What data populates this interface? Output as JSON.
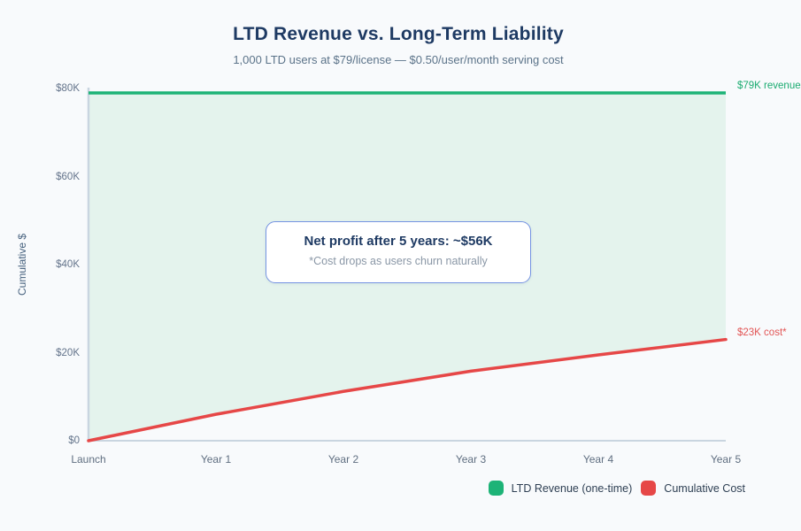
{
  "header": {
    "title": "LTD Revenue vs. Long-Term Liability",
    "subtitle": "1,000 LTD users at $79/license — $0.50/user/month serving cost"
  },
  "chart_data": {
    "type": "area",
    "categories": [
      "Launch",
      "Year 1",
      "Year 2",
      "Year 3",
      "Year 4",
      "Year 5"
    ],
    "series": [
      {
        "name": "LTD Revenue (one-time)",
        "color": "#1db377",
        "values": [
          79,
          79,
          79,
          79,
          79,
          79
        ]
      },
      {
        "name": "Cumulative Cost",
        "color": "#e64747",
        "values": [
          0,
          6,
          11.2,
          15.8,
          19.5,
          23
        ]
      }
    ],
    "units": "thousands of USD",
    "ylabel": "Cumulative $",
    "yticks": [
      "$80K",
      "$60K",
      "$40K",
      "$20K",
      "$0"
    ],
    "ylim": [
      0,
      80
    ],
    "grid": false,
    "area_fill": "#e4f3ed",
    "legend_position": "bottom-right",
    "end_labels": {
      "revenue": {
        "text": "$79K revenue",
        "color": "#1aab70"
      },
      "cost": {
        "text": "$23K cost*",
        "color": "#e25555"
      }
    }
  },
  "annotation": {
    "title": "Net profit after 5 years: ~$56K",
    "note": "*Cost drops as users churn naturally",
    "border_color": "#7593e2"
  },
  "page": {
    "background": "#f8fafc"
  }
}
